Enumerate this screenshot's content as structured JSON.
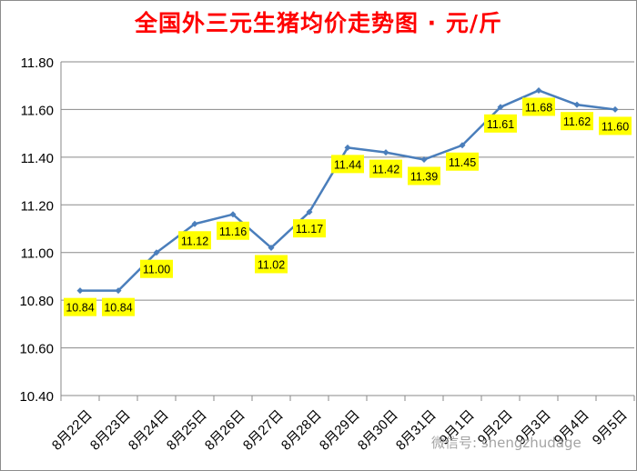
{
  "chart_data": {
    "type": "line",
    "title": "全国外三元生猪均价走势图 · 元/斤",
    "categories": [
      "8月22日",
      "8月23日",
      "8月24日",
      "8月25日",
      "8月26日",
      "8月27日",
      "8月28日",
      "8月29日",
      "8月30日",
      "8月31日",
      "9月1日",
      "9月2日",
      "9月3日",
      "9月4日",
      "9月5日"
    ],
    "values": [
      10.84,
      10.84,
      11.0,
      11.12,
      11.16,
      11.02,
      11.17,
      11.44,
      11.42,
      11.39,
      11.45,
      11.61,
      11.68,
      11.62,
      11.6
    ],
    "data_labels": [
      "10.84",
      "10.84",
      "11.00",
      "11.12",
      "11.16",
      "11.02",
      "11.17",
      "11.44",
      "11.42",
      "11.39",
      "11.45",
      "11.61",
      "11.68",
      "11.62",
      "11.60"
    ],
    "y_ticks": [
      "10.40",
      "10.60",
      "10.80",
      "11.00",
      "11.20",
      "11.40",
      "11.60",
      "11.80"
    ],
    "ylim": [
      10.4,
      11.8
    ],
    "xlabel": "",
    "ylabel": "",
    "grid": "horizontal",
    "legend": "none",
    "colors": {
      "line": "#4a7ebb",
      "label_bg": "#ffff00",
      "title": "#ff0000",
      "grid": "#8a8a8a"
    }
  },
  "watermark": "微信号: shengzhudage"
}
